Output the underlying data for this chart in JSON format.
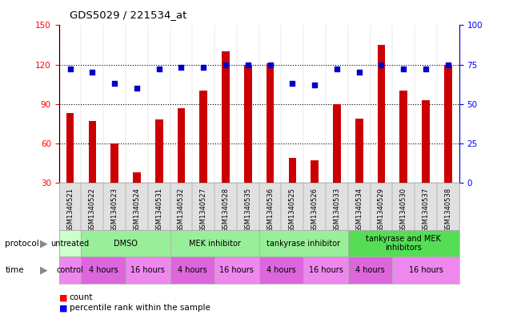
{
  "title": "GDS5029 / 221534_at",
  "samples": [
    "GSM1340521",
    "GSM1340522",
    "GSM1340523",
    "GSM1340524",
    "GSM1340531",
    "GSM1340532",
    "GSM1340527",
    "GSM1340528",
    "GSM1340535",
    "GSM1340536",
    "GSM1340525",
    "GSM1340526",
    "GSM1340533",
    "GSM1340534",
    "GSM1340529",
    "GSM1340530",
    "GSM1340537",
    "GSM1340538"
  ],
  "counts": [
    83,
    77,
    60,
    38,
    78,
    87,
    100,
    130,
    120,
    121,
    49,
    47,
    90,
    79,
    135,
    100,
    93,
    120
  ],
  "percentile_ranks": [
    72,
    70,
    63,
    60,
    72,
    73,
    73,
    75,
    75,
    75,
    63,
    62,
    72,
    70,
    75,
    72,
    72,
    75
  ],
  "ylim_left": [
    30,
    150
  ],
  "ylim_right": [
    0,
    100
  ],
  "yticks_left": [
    30,
    60,
    90,
    120,
    150
  ],
  "yticks_right": [
    0,
    25,
    50,
    75,
    100
  ],
  "bar_color": "#cc0000",
  "dot_color": "#0000cc",
  "protocol_groups": [
    {
      "label": "untreated",
      "start": 0,
      "end": 1,
      "color": "#ccffcc"
    },
    {
      "label": "DMSO",
      "start": 1,
      "end": 5,
      "color": "#99ee99"
    },
    {
      "label": "MEK inhibitor",
      "start": 5,
      "end": 9,
      "color": "#99ee99"
    },
    {
      "label": "tankyrase inhibitor",
      "start": 9,
      "end": 13,
      "color": "#99ee99"
    },
    {
      "label": "tankyrase and MEK\ninhibitors",
      "start": 13,
      "end": 18,
      "color": "#55dd55"
    }
  ],
  "time_groups": [
    {
      "label": "control",
      "start": 0,
      "end": 1,
      "color": "#ee88ee"
    },
    {
      "label": "4 hours",
      "start": 1,
      "end": 3,
      "color": "#dd66dd"
    },
    {
      "label": "16 hours",
      "start": 3,
      "end": 5,
      "color": "#ee88ee"
    },
    {
      "label": "4 hours",
      "start": 5,
      "end": 7,
      "color": "#dd66dd"
    },
    {
      "label": "16 hours",
      "start": 7,
      "end": 9,
      "color": "#ee88ee"
    },
    {
      "label": "4 hours",
      "start": 9,
      "end": 11,
      "color": "#dd66dd"
    },
    {
      "label": "16 hours",
      "start": 11,
      "end": 13,
      "color": "#ee88ee"
    },
    {
      "label": "4 hours",
      "start": 13,
      "end": 15,
      "color": "#dd66dd"
    },
    {
      "label": "16 hours",
      "start": 15,
      "end": 18,
      "color": "#ee88ee"
    }
  ],
  "col_bg_colors": [
    "#e8e8e8",
    "#e8e8e8",
    "#e8e8e8",
    "#e8e8e8",
    "#e8e8e8",
    "#e8e8e8",
    "#e8e8e8",
    "#e8e8e8",
    "#e8e8e8",
    "#e8e8e8",
    "#e8e8e8",
    "#e8e8e8",
    "#e8e8e8",
    "#e8e8e8",
    "#e8e8e8",
    "#e8e8e8",
    "#e8e8e8",
    "#e8e8e8"
  ]
}
